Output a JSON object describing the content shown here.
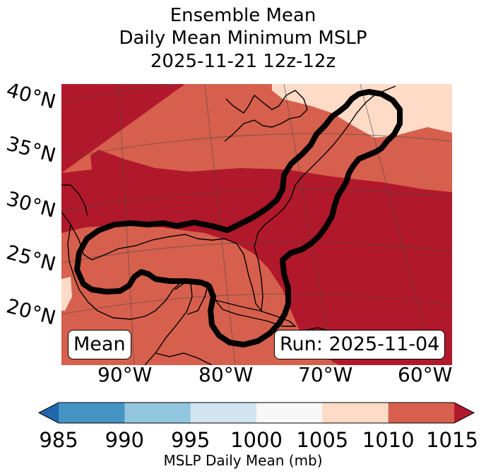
{
  "title": {
    "line1": "Ensemble Mean",
    "line2": "Daily Mean Minimum MSLP",
    "line3": "2025-11-21 12z-12z"
  },
  "map": {
    "latitude_labels": [
      "40°N",
      "35°N",
      "30°N",
      "25°N",
      "20°N"
    ],
    "longitude_labels": [
      "90°W",
      "80°W",
      "70°W",
      "60°W"
    ],
    "mean_box": "Mean",
    "run_box": "Run: 2025-11-04",
    "fill_colors": {
      "1005-1010": "#fddbc7",
      "1010-1015": "#d6604d",
      "above-1015": "#b2182b"
    },
    "contour_color": "#000000"
  },
  "colorbar": {
    "tick_labels": [
      "985",
      "990",
      "995",
      "1000",
      "1005",
      "1010",
      "1015"
    ],
    "colors": [
      "#2166ac",
      "#4393c3",
      "#92c5de",
      "#d1e5f0",
      "#f7f7f7",
      "#fddbc7",
      "#d6604d",
      "#b2182b"
    ],
    "label": "MSLP Daily Mean (mb)"
  }
}
